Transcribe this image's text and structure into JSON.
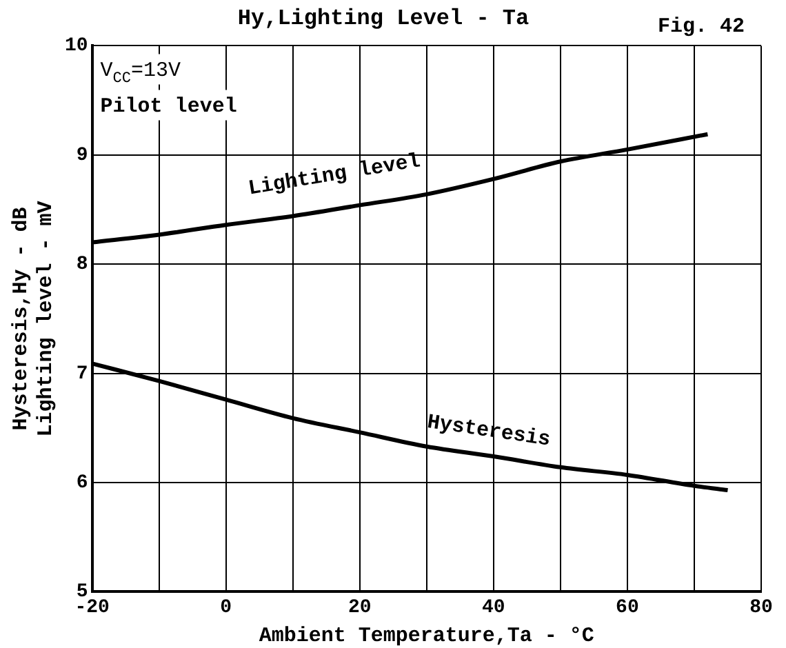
{
  "chart_data": {
    "type": "line",
    "title": "Hy,Lighting Level - Ta",
    "xlabel": "Ambient Temperature,Ta - °C",
    "ylabel": "Hysteresis,Hy - dB\nLighting level - mV",
    "annotations": [
      "V$_{CC}$=13V",
      "Pilot level",
      "Fig. 42"
    ],
    "xlim": [
      -20,
      80
    ],
    "xticks": [
      -20,
      {
        "value": -10,
        "label": null
      },
      0,
      {
        "value": 10,
        "label": null
      },
      20,
      {
        "value": 30,
        "label": null
      },
      40,
      {
        "value": 50,
        "label": null
      },
      60,
      {
        "value": 70,
        "label": null
      },
      80
    ],
    "ylim": [
      5,
      10
    ],
    "yticks": [
      5,
      6,
      7,
      8,
      9,
      10
    ],
    "grid": true,
    "legend": false,
    "marker": "none",
    "line_style": "solid",
    "series": [
      {
        "name": "Lighting level",
        "color": "#000000",
        "x": [
          -20,
          -10,
          0,
          10,
          20,
          30,
          40,
          50,
          60,
          72
        ],
        "values": [
          8.2,
          8.27,
          8.36,
          8.44,
          8.54,
          8.64,
          8.78,
          8.94,
          9.05,
          9.19
        ]
      },
      {
        "name": "Hysteresis",
        "color": "#000000",
        "x": [
          -20,
          -10,
          0,
          10,
          20,
          30,
          40,
          50,
          60,
          70,
          75
        ],
        "values": [
          7.09,
          6.93,
          6.76,
          6.59,
          6.46,
          6.33,
          6.24,
          6.14,
          6.07,
          5.97,
          5.93
        ]
      }
    ]
  }
}
